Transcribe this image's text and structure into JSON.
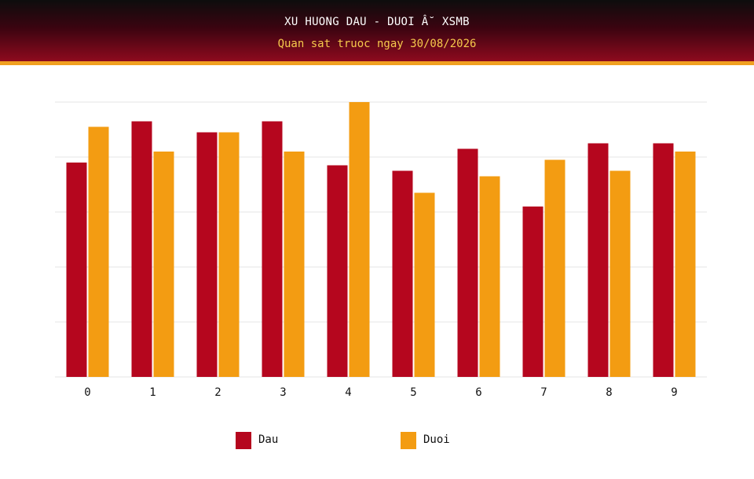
{
  "header": {
    "title": "XU HUONG DAU - DUOI Â˘ XSMB",
    "subtitle": "Quan sat truoc ngay 30/08/2026"
  },
  "colors": {
    "dau": "#b5061e",
    "duoi": "#f39c12"
  },
  "chart_data": {
    "type": "bar",
    "categories": [
      "0",
      "1",
      "2",
      "3",
      "4",
      "5",
      "6",
      "7",
      "8",
      "9"
    ],
    "series": [
      {
        "name": "Dau",
        "values": [
          39,
          46.5,
          44.5,
          46.5,
          38.5,
          37.5,
          41.5,
          31,
          42.5,
          42.5
        ]
      },
      {
        "name": "Duoi",
        "values": [
          45.5,
          41,
          44.5,
          41,
          50,
          33.5,
          36.5,
          39.5,
          37.5,
          41
        ]
      }
    ],
    "ylim": [
      0,
      50
    ],
    "grid": true,
    "legend": "bottom-center"
  }
}
